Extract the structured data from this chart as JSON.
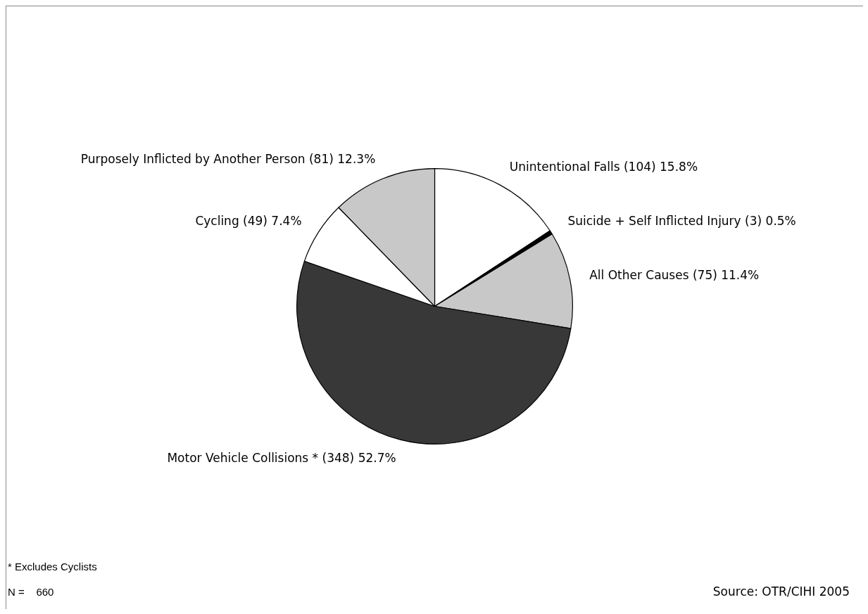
{
  "chart_data": {
    "type": "pie",
    "categories": [
      "Unintentional Falls",
      "Suicide + Self Inflicted Injury",
      "All Other Causes",
      "Motor Vehicle Collisions *",
      "Cycling",
      "Purposely Inflicted by Another Person"
    ],
    "values": [
      104,
      3,
      75,
      348,
      49,
      81
    ],
    "value_labels": [
      "(104) 15.8%",
      "(3) 0.5%",
      "(75) 11.4%",
      "(348) 52.7%",
      "(49) 7.4%",
      "(81) 12.3%"
    ],
    "colors": [
      "#ffffff",
      "#000000",
      "#c8c8c8",
      "#383838",
      "#ffffff",
      "#c8c8c8"
    ],
    "annotations": [
      "* Excludes Cyclists",
      "N =    660",
      "Source: OTR/CIHI 2005"
    ],
    "legend": false
  }
}
